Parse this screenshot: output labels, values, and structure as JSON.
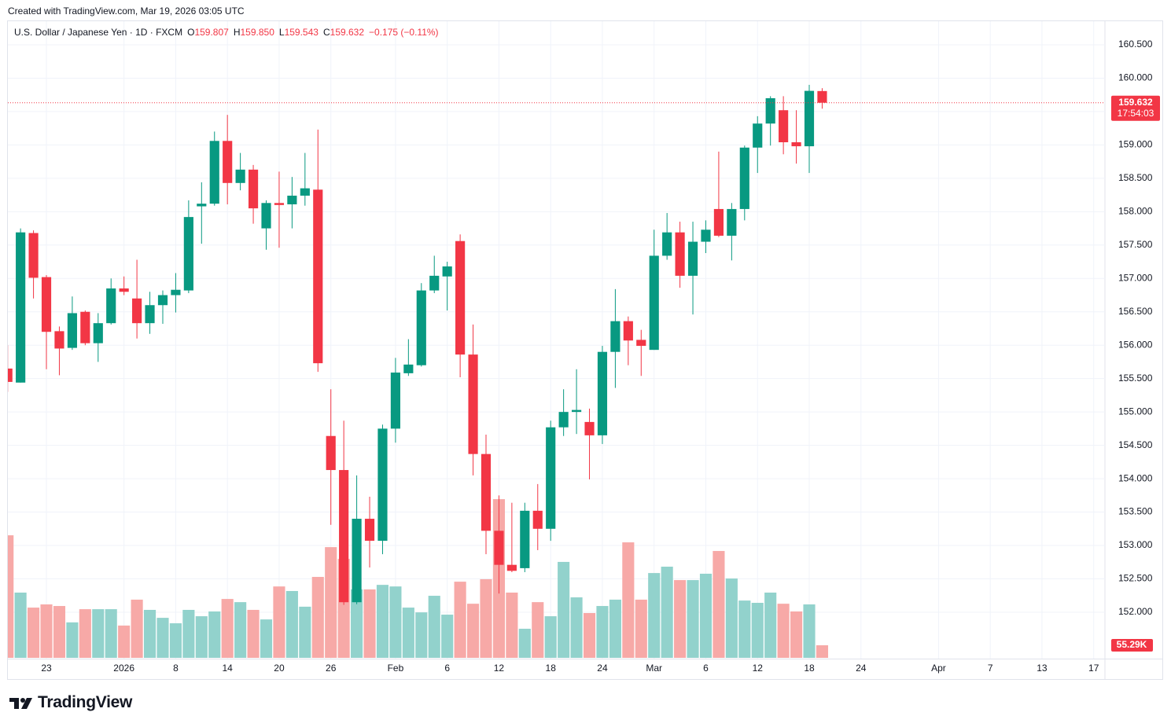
{
  "header": "Created with TradingView.com, Mar 19, 2026 03:05 UTC",
  "footer_logo": "TradingView",
  "chart_data": {
    "type": "candlestick",
    "symbol": "U.S. Dollar / Japanese Yen · 1D · FXCM",
    "legend": [
      {
        "key": "O",
        "text": "159.807"
      },
      {
        "key": "H",
        "text": "159.850"
      },
      {
        "key": "L",
        "text": "159.543"
      },
      {
        "key": "C",
        "text": "159.632"
      }
    ],
    "change": "−0.175 (−0.11%)",
    "countdown": "17:54:03",
    "colors": {
      "up": "#089981",
      "down": "#f23645",
      "up_volume": "#92d2cc",
      "down_volume": "#f7a9a7"
    },
    "grid": true,
    "candles": [
      {
        "open": 155.65,
        "high": 156.0,
        "low": 155.3,
        "close": 155.45
      },
      {
        "open": 155.44,
        "high": 157.75,
        "low": 155.44,
        "close": 157.69
      },
      {
        "open": 157.68,
        "high": 157.72,
        "low": 156.7,
        "close": 157.01
      },
      {
        "open": 157.02,
        "high": 157.05,
        "low": 155.64,
        "close": 156.2
      },
      {
        "open": 156.21,
        "high": 156.28,
        "low": 155.55,
        "close": 155.95
      },
      {
        "open": 155.96,
        "high": 156.73,
        "low": 155.93,
        "close": 156.48
      },
      {
        "open": 156.5,
        "high": 156.52,
        "low": 156.0,
        "close": 156.03
      },
      {
        "open": 156.03,
        "high": 156.48,
        "low": 155.75,
        "close": 156.33
      },
      {
        "open": 156.33,
        "high": 157.0,
        "low": 156.31,
        "close": 156.85
      },
      {
        "open": 156.85,
        "high": 157.03,
        "low": 156.75,
        "close": 156.8
      },
      {
        "open": 156.7,
        "high": 157.28,
        "low": 156.1,
        "close": 156.33
      },
      {
        "open": 156.33,
        "high": 156.8,
        "low": 156.17,
        "close": 156.6
      },
      {
        "open": 156.6,
        "high": 156.82,
        "low": 156.32,
        "close": 156.75
      },
      {
        "open": 156.75,
        "high": 157.08,
        "low": 156.49,
        "close": 156.83
      },
      {
        "open": 156.82,
        "high": 158.17,
        "low": 156.78,
        "close": 157.92
      },
      {
        "open": 158.08,
        "high": 158.44,
        "low": 157.52,
        "close": 158.12
      },
      {
        "open": 158.12,
        "high": 159.2,
        "low": 158.09,
        "close": 159.06
      },
      {
        "open": 159.06,
        "high": 159.45,
        "low": 158.11,
        "close": 158.43
      },
      {
        "open": 158.43,
        "high": 158.88,
        "low": 158.32,
        "close": 158.63
      },
      {
        "open": 158.63,
        "high": 158.7,
        "low": 157.82,
        "close": 158.05
      },
      {
        "open": 157.75,
        "high": 158.17,
        "low": 157.43,
        "close": 158.13
      },
      {
        "open": 158.13,
        "high": 158.6,
        "low": 157.46,
        "close": 158.1
      },
      {
        "open": 158.11,
        "high": 158.52,
        "low": 157.75,
        "close": 158.24
      },
      {
        "open": 158.24,
        "high": 158.88,
        "low": 158.09,
        "close": 158.35
      },
      {
        "open": 158.33,
        "high": 159.23,
        "low": 155.6,
        "close": 155.73
      },
      {
        "open": 154.64,
        "high": 155.34,
        "low": 153.31,
        "close": 154.13
      },
      {
        "open": 154.13,
        "high": 154.87,
        "low": 152.11,
        "close": 152.15
      },
      {
        "open": 152.15,
        "high": 154.05,
        "low": 152.12,
        "close": 153.4
      },
      {
        "open": 153.4,
        "high": 153.73,
        "low": 152.67,
        "close": 153.07
      },
      {
        "open": 153.07,
        "high": 154.81,
        "low": 152.87,
        "close": 154.75
      },
      {
        "open": 154.75,
        "high": 155.81,
        "low": 154.54,
        "close": 155.59
      },
      {
        "open": 155.58,
        "high": 156.09,
        "low": 155.54,
        "close": 155.71
      },
      {
        "open": 155.7,
        "high": 156.93,
        "low": 155.68,
        "close": 156.82
      },
      {
        "open": 156.82,
        "high": 157.34,
        "low": 156.78,
        "close": 157.04
      },
      {
        "open": 157.03,
        "high": 157.25,
        "low": 156.52,
        "close": 157.18
      },
      {
        "open": 157.56,
        "high": 157.66,
        "low": 155.52,
        "close": 155.86
      },
      {
        "open": 155.86,
        "high": 156.31,
        "low": 154.05,
        "close": 154.37
      },
      {
        "open": 154.37,
        "high": 154.66,
        "low": 152.87,
        "close": 153.22
      },
      {
        "open": 153.22,
        "high": 153.75,
        "low": 152.28,
        "close": 152.71
      },
      {
        "open": 152.71,
        "high": 153.64,
        "low": 152.6,
        "close": 152.62
      },
      {
        "open": 152.66,
        "high": 153.64,
        "low": 152.6,
        "close": 153.52
      },
      {
        "open": 153.52,
        "high": 153.92,
        "low": 152.93,
        "close": 153.25
      },
      {
        "open": 153.25,
        "high": 154.87,
        "low": 153.07,
        "close": 154.77
      },
      {
        "open": 154.77,
        "high": 155.34,
        "low": 154.64,
        "close": 155.0
      },
      {
        "open": 155.0,
        "high": 155.64,
        "low": 154.67,
        "close": 155.03
      },
      {
        "open": 154.85,
        "high": 155.05,
        "low": 153.99,
        "close": 154.65
      },
      {
        "open": 154.65,
        "high": 155.99,
        "low": 154.52,
        "close": 155.9
      },
      {
        "open": 155.9,
        "high": 156.84,
        "low": 155.36,
        "close": 156.36
      },
      {
        "open": 156.36,
        "high": 156.43,
        "low": 155.7,
        "close": 156.07
      },
      {
        "open": 156.08,
        "high": 156.23,
        "low": 155.54,
        "close": 155.99
      },
      {
        "open": 155.93,
        "high": 157.73,
        "low": 155.93,
        "close": 157.34
      },
      {
        "open": 157.34,
        "high": 157.98,
        "low": 157.28,
        "close": 157.69
      },
      {
        "open": 157.69,
        "high": 157.85,
        "low": 156.86,
        "close": 157.04
      },
      {
        "open": 157.04,
        "high": 157.85,
        "low": 156.46,
        "close": 157.55
      },
      {
        "open": 157.55,
        "high": 157.87,
        "low": 157.38,
        "close": 157.73
      },
      {
        "open": 158.04,
        "high": 158.9,
        "low": 157.62,
        "close": 157.64
      },
      {
        "open": 157.64,
        "high": 158.13,
        "low": 157.27,
        "close": 158.04
      },
      {
        "open": 158.04,
        "high": 158.99,
        "low": 157.87,
        "close": 158.96
      },
      {
        "open": 158.96,
        "high": 159.43,
        "low": 158.58,
        "close": 159.32
      },
      {
        "open": 159.32,
        "high": 159.73,
        "low": 158.99,
        "close": 159.7
      },
      {
        "open": 159.52,
        "high": 159.73,
        "low": 158.86,
        "close": 159.04
      },
      {
        "open": 159.04,
        "high": 159.52,
        "low": 158.72,
        "close": 158.98
      },
      {
        "open": 158.98,
        "high": 159.9,
        "low": 158.58,
        "close": 159.81
      },
      {
        "open": 159.807,
        "high": 159.85,
        "low": 159.543,
        "close": 159.632
      }
    ],
    "volume": {
      "values": [
        539,
        287,
        221,
        235,
        228,
        156,
        214,
        214,
        214,
        142,
        256,
        211,
        176,
        152,
        211,
        183,
        204,
        259,
        245,
        211,
        169,
        314,
        294,
        225,
        356,
        487,
        435,
        301,
        301,
        321,
        314,
        221,
        200,
        273,
        190,
        335,
        238,
        346,
        698,
        287,
        128,
        245,
        183,
        422,
        266,
        197,
        228,
        256,
        508,
        256,
        373,
        401,
        342,
        342,
        370,
        470,
        349,
        252,
        242,
        287,
        238,
        204,
        235,
        55.29
      ],
      "last_label": "55.29K",
      "ylim": [
        0,
        726
      ]
    },
    "xlim": [
      0,
      84.87
    ],
    "xticks": [
      {
        "value": 3,
        "label": "23"
      },
      {
        "value": 9,
        "label": "2026"
      },
      {
        "value": 13,
        "label": "8"
      },
      {
        "value": 17,
        "label": "14"
      },
      {
        "value": 21,
        "label": "20"
      },
      {
        "value": 25,
        "label": "26"
      },
      {
        "value": 30,
        "label": "Feb"
      },
      {
        "value": 34,
        "label": "6"
      },
      {
        "value": 38,
        "label": "12"
      },
      {
        "value": 42,
        "label": "18"
      },
      {
        "value": 46,
        "label": "24"
      },
      {
        "value": 50,
        "label": "Mar"
      },
      {
        "value": 54,
        "label": "6"
      },
      {
        "value": 58,
        "label": "12"
      },
      {
        "value": 62,
        "label": "18"
      },
      {
        "value": 66,
        "label": "24"
      },
      {
        "value": 72,
        "label": "Apr"
      },
      {
        "value": 76,
        "label": "7"
      },
      {
        "value": 80,
        "label": "13"
      },
      {
        "value": 84,
        "label": "17"
      }
    ],
    "ylim": [
      151.305,
      160.853
    ],
    "yticks": [
      {
        "value": 152,
        "label": "152.000"
      },
      {
        "value": 152.5,
        "label": "152.500"
      },
      {
        "value": 153,
        "label": "153.000"
      },
      {
        "value": 153.5,
        "label": "153.500"
      },
      {
        "value": 154,
        "label": "154.000"
      },
      {
        "value": 154.5,
        "label": "154.500"
      },
      {
        "value": 155,
        "label": "155.000"
      },
      {
        "value": 155.5,
        "label": "155.500"
      },
      {
        "value": 156,
        "label": "156.000"
      },
      {
        "value": 156.5,
        "label": "156.500"
      },
      {
        "value": 157,
        "label": "157.000"
      },
      {
        "value": 157.5,
        "label": "157.500"
      },
      {
        "value": 158,
        "label": "158.000"
      },
      {
        "value": 158.5,
        "label": "158.500"
      },
      {
        "value": 159,
        "label": "159.000"
      },
      {
        "value": 159.5,
        "label": "159.500"
      },
      {
        "value": 160,
        "label": "160.000"
      },
      {
        "value": 160.5,
        "label": "160.500"
      }
    ]
  }
}
